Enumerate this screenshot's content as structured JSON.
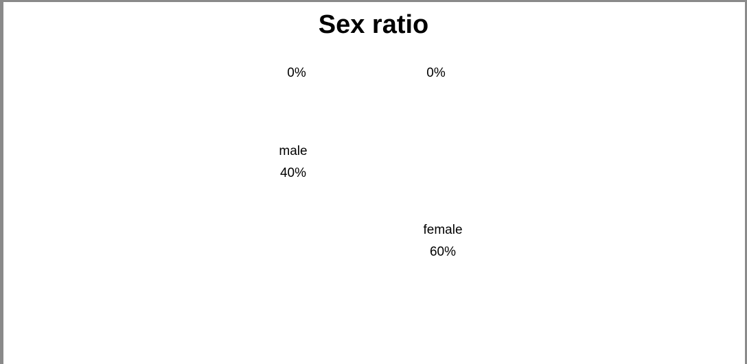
{
  "chart_data": {
    "type": "pie",
    "title": "Sex ratio",
    "categories": [
      "",
      "",
      "male",
      "female"
    ],
    "values": [
      0,
      0,
      40,
      60
    ],
    "data_labels": [
      {
        "category": "",
        "value": "0%"
      },
      {
        "category": "",
        "value": "0%"
      },
      {
        "category": "male",
        "value": "40%"
      },
      {
        "category": "female",
        "value": "60%"
      }
    ],
    "slice_fill": "none",
    "legend": "none",
    "grid": false
  }
}
